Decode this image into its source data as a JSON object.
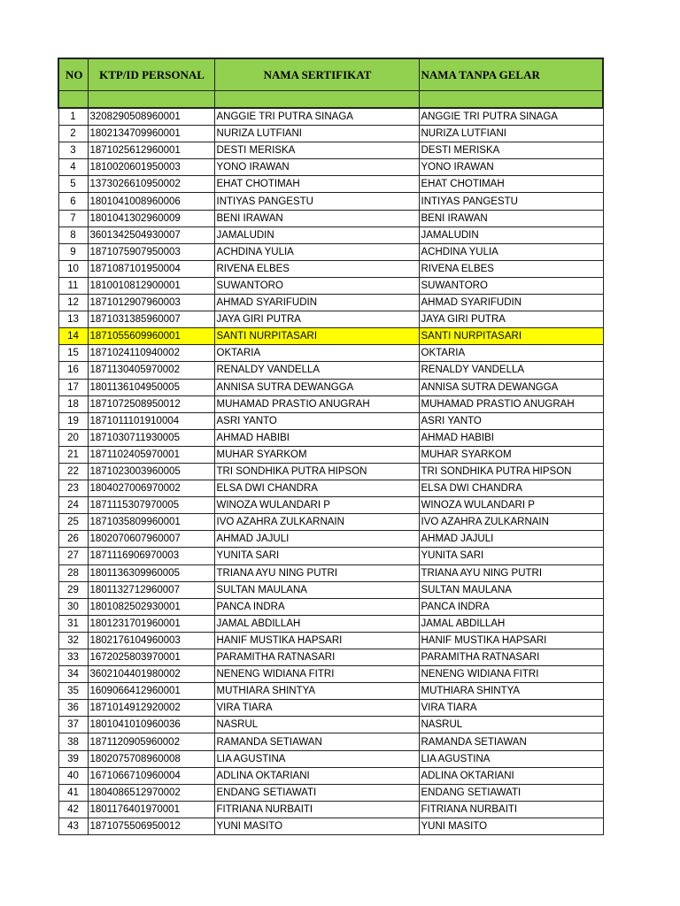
{
  "headers": {
    "no": "NO",
    "ktp": "KTP/ID PERSONAL",
    "nama_sertifikat": "NAMA SERTIFIKAT",
    "nama_tanpa_gelar": "NAMA TANPA GELAR"
  },
  "highlight_color": "#ffff00",
  "header_color": "#92d050",
  "highlighted_row_no": "14",
  "rows": [
    [
      "1",
      "3208290508960001",
      "ANGGIE TRI PUTRA SINAGA",
      "ANGGIE TRI PUTRA SINAGA"
    ],
    [
      "2",
      "1802134709960001",
      "NURIZA LUTFIANI",
      "NURIZA LUTFIANI"
    ],
    [
      "3",
      "1871025612960001",
      "DESTI MERISKA",
      "DESTI MERISKA"
    ],
    [
      "4",
      "1810020601950003",
      "YONO IRAWAN",
      "YONO IRAWAN"
    ],
    [
      "5",
      "1373026610950002",
      "EHAT CHOTIMAH",
      "EHAT CHOTIMAH"
    ],
    [
      "6",
      "1801041008960006",
      "INTIYAS PANGESTU",
      "INTIYAS PANGESTU"
    ],
    [
      "7",
      "1801041302960009",
      "BENI IRAWAN",
      "BENI IRAWAN"
    ],
    [
      "8",
      "3601342504930007",
      "JAMALUDIN",
      "JAMALUDIN"
    ],
    [
      "9",
      "1871075907950003",
      "ACHDINA YULIA",
      "ACHDINA YULIA"
    ],
    [
      "10",
      "1871087101950004",
      "RIVENA ELBES",
      "RIVENA ELBES"
    ],
    [
      "11",
      "1810010812900001",
      "SUWANTORO",
      "SUWANTORO"
    ],
    [
      "12",
      "1871012907960003",
      "AHMAD SYARIFUDIN",
      "AHMAD SYARIFUDIN"
    ],
    [
      "13",
      "1871031385960007",
      "JAYA GIRI PUTRA",
      "JAYA GIRI PUTRA"
    ],
    [
      "14",
      "1871055609960001",
      "SANTI NURPITASARI",
      "SANTI NURPITASARI"
    ],
    [
      "15",
      "1871024110940002",
      "OKTARIA",
      "OKTARIA"
    ],
    [
      "16",
      "1871130405970002",
      "RENALDY VANDELLA",
      "RENALDY VANDELLA"
    ],
    [
      "17",
      "1801136104950005",
      "ANNISA SUTRA DEWANGGA",
      "ANNISA SUTRA DEWANGGA"
    ],
    [
      "18",
      "1871072508950012",
      "MUHAMAD PRASTIO ANUGRAH",
      "MUHAMAD PRASTIO ANUGRAH"
    ],
    [
      "19",
      "1871011101910004",
      "ASRI YANTO",
      "ASRI YANTO"
    ],
    [
      "20",
      "1871030711930005",
      "AHMAD HABIBI",
      "AHMAD HABIBI"
    ],
    [
      "21",
      "1871102405970001",
      "MUHAR SYARKOM",
      "MUHAR SYARKOM"
    ],
    [
      "22",
      "1871023003960005",
      "TRI SONDHIKA PUTRA HIPSON",
      "TRI SONDHIKA PUTRA HIPSON"
    ],
    [
      "23",
      "1804027006970002",
      "ELSA DWI CHANDRA",
      "ELSA DWI CHANDRA"
    ],
    [
      "24",
      "1871115307970005",
      "WINOZA WULANDARI P",
      "WINOZA WULANDARI P"
    ],
    [
      "25",
      "1871035809960001",
      "IVO AZAHRA ZULKARNAIN",
      "IVO AZAHRA ZULKARNAIN"
    ],
    [
      "26",
      "1802070607960007",
      "AHMAD JAJULI",
      "AHMAD JAJULI"
    ],
    [
      "27",
      "1871116906970003",
      "YUNITA SARI",
      "YUNITA SARI"
    ],
    [
      "28",
      "1801136309960005",
      "TRIANA AYU NING PUTRI",
      "TRIANA AYU NING PUTRI"
    ],
    [
      "29",
      "1801132712960007",
      "SULTAN MAULANA",
      "SULTAN MAULANA"
    ],
    [
      "30",
      "1801082502930001",
      "PANCA INDRA",
      "PANCA INDRA"
    ],
    [
      "31",
      "1801231701960001",
      "JAMAL ABDILLAH",
      "JAMAL ABDILLAH"
    ],
    [
      "32",
      "1802176104960003",
      "HANIF MUSTIKA HAPSARI",
      "HANIF MUSTIKA HAPSARI"
    ],
    [
      "33",
      "1672025803970001",
      "PARAMITHA RATNASARI",
      "PARAMITHA RATNASARI"
    ],
    [
      "34",
      "3602104401980002",
      "NENENG WIDIANA FITRI",
      "NENENG WIDIANA FITRI"
    ],
    [
      "35",
      "1609066412960001",
      "MUTHIARA SHINTYA",
      "MUTHIARA SHINTYA"
    ],
    [
      "36",
      "1871014912920002",
      "VIRA TIARA",
      "VIRA TIARA"
    ],
    [
      "37",
      "1801041010960036",
      "NASRUL",
      "NASRUL"
    ],
    [
      "38",
      "1871120905960002",
      "RAMANDA SETIAWAN",
      "RAMANDA SETIAWAN"
    ],
    [
      "39",
      "1802075708960008",
      "LIA AGUSTINA",
      "LIA AGUSTINA"
    ],
    [
      "40",
      "1671066710960004",
      "ADLINA OKTARIANI",
      "ADLINA OKTARIANI"
    ],
    [
      "41",
      "1804086512970002",
      "ENDANG SETIAWATI",
      "ENDANG SETIAWATI"
    ],
    [
      "42",
      "1801176401970001",
      "FITRIANA NURBAITI",
      "FITRIANA NURBAITI"
    ],
    [
      "43",
      "1871075506950012",
      "YUNI MASITO",
      "YUNI MASITO"
    ]
  ]
}
